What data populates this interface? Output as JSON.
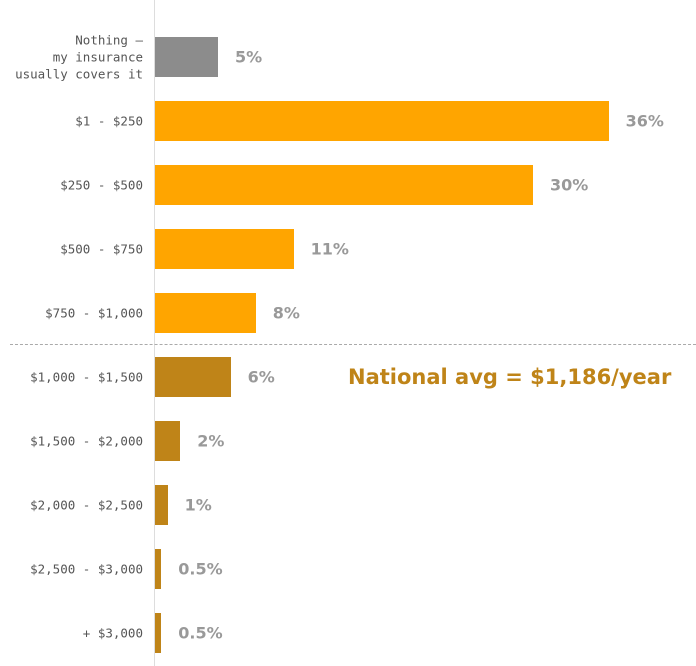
{
  "chart_data": {
    "type": "bar",
    "orientation": "horizontal",
    "categories": [
      "Nothing —\nmy insurance\nusually covers it",
      "$1 - $250",
      "$250 - $500",
      "$500 - $750",
      "$750 - $1,000",
      "$1,000 - $1,500",
      "$1,500 - $2,000",
      "$2,000 - $2,500",
      "$2,500 - $3,000",
      "+ $3,000"
    ],
    "values": [
      5,
      36,
      30,
      11,
      8,
      6,
      2,
      1,
      0.5,
      0.5
    ],
    "value_labels": [
      "5%",
      "36%",
      "30%",
      "11%",
      "8%",
      "6%",
      "2%",
      "1%",
      "0.5%",
      "0.5%"
    ],
    "colors": [
      "#8c8c8c",
      "#ffa500",
      "#ffa500",
      "#ffa500",
      "#ffa500",
      "#bf8418",
      "#bf8418",
      "#bf8418",
      "#bf8418",
      "#bf8418"
    ],
    "annotation": "National avg = $1,186/year"
  }
}
